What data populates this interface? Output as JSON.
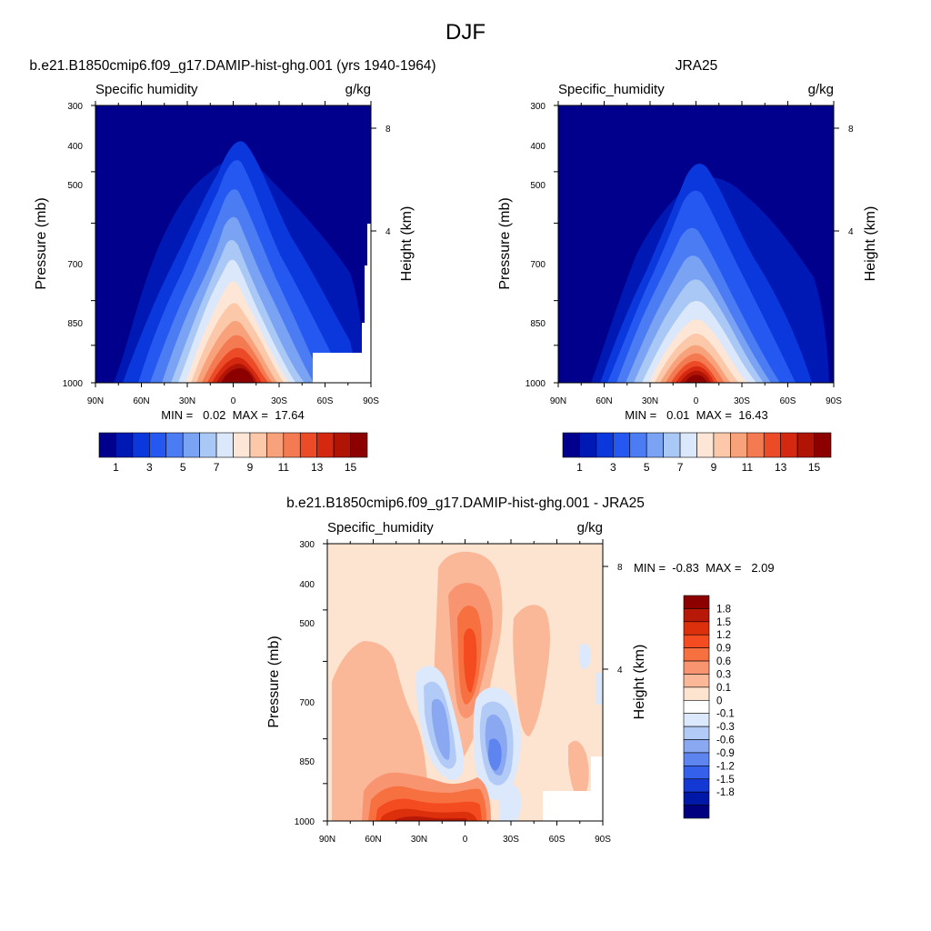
{
  "figure": {
    "title": "DJF"
  },
  "chart_data": [
    {
      "type": "heatmap",
      "title": "b.e21.B1850cmip6.f09_g17.DAMIP-hist-ghg.001 (yrs 1940-1964)",
      "left_label": "Specific humidity",
      "right_label": "g/kg",
      "ylabel": "Pressure (mb)",
      "ylabel_right": "Height (km)",
      "x_ticks": [
        "90N",
        "60N",
        "30N",
        "0",
        "30S",
        "60S",
        "90S"
      ],
      "y_ticks": [
        "300",
        "400",
        "500",
        "700",
        "850",
        "1000"
      ],
      "y_ticks_right": [
        "8",
        "4"
      ],
      "ylim": [
        1000,
        300
      ],
      "stats": "MIN =   0.02  MAX =  17.64",
      "min": 0.02,
      "max": 17.64,
      "colorbar_orientation": "horizontal",
      "colorbar_labels": [
        "1",
        "3",
        "5",
        "7",
        "9",
        "11",
        "13",
        "15"
      ],
      "colorbar_colors": [
        "#00008c",
        "#0018b4",
        "#0a38dc",
        "#2458f0",
        "#4b7cf4",
        "#7aa3f4",
        "#aac8f6",
        "#dbe8fb",
        "#fde6d6",
        "#fcc8aa",
        "#f8a27c",
        "#f47a52",
        "#ec4b28",
        "#d42810",
        "#b01404",
        "#8c0000"
      ]
    },
    {
      "type": "heatmap",
      "title": "JRA25",
      "left_label": "Specific_humidity",
      "right_label": "g/kg",
      "ylabel": "Pressure (mb)",
      "ylabel_right": "Height (km)",
      "x_ticks": [
        "90N",
        "60N",
        "30N",
        "0",
        "30S",
        "60S",
        "90S"
      ],
      "y_ticks": [
        "300",
        "400",
        "500",
        "700",
        "850",
        "1000"
      ],
      "y_ticks_right": [
        "8",
        "4"
      ],
      "ylim": [
        1000,
        300
      ],
      "stats": "MIN =   0.01  MAX =  16.43",
      "min": 0.01,
      "max": 16.43,
      "colorbar_orientation": "horizontal",
      "colorbar_labels": [
        "1",
        "3",
        "5",
        "7",
        "9",
        "11",
        "13",
        "15"
      ],
      "colorbar_colors": [
        "#00008c",
        "#0018b4",
        "#0a38dc",
        "#2458f0",
        "#4b7cf4",
        "#7aa3f4",
        "#aac8f6",
        "#dbe8fb",
        "#fde6d6",
        "#fcc8aa",
        "#f8a27c",
        "#f47a52",
        "#ec4b28",
        "#d42810",
        "#b01404",
        "#8c0000"
      ]
    },
    {
      "type": "heatmap",
      "title": "b.e21.B1850cmip6.f09_g17.DAMIP-hist-ghg.001 - JRA25",
      "left_label": "Specific_humidity",
      "right_label": "g/kg",
      "ylabel": "Pressure (mb)",
      "ylabel_right": "Height (km)",
      "x_ticks": [
        "90N",
        "60N",
        "30N",
        "0",
        "30S",
        "60S",
        "90S"
      ],
      "y_ticks": [
        "300",
        "400",
        "500",
        "700",
        "850",
        "1000"
      ],
      "y_ticks_right": [
        "8",
        "4"
      ],
      "ylim": [
        1000,
        300
      ],
      "stats": "MIN =  -0.83  MAX =   2.09",
      "min": -0.83,
      "max": 2.09,
      "colorbar_orientation": "vertical",
      "colorbar_labels": [
        "1.8",
        "1.5",
        "1.2",
        "0.9",
        "0.6",
        "0.3",
        "0.1",
        "0",
        "-0.1",
        "-0.3",
        "-0.6",
        "-0.9",
        "-1.2",
        "-1.5",
        "-1.8"
      ],
      "colorbar_colors": [
        "#8c0000",
        "#b81808",
        "#dc300c",
        "#f44c20",
        "#f67040",
        "#f89470",
        "#fab898",
        "#fde4d0",
        "#ffffff",
        "#dce8fb",
        "#b2caf6",
        "#8aa8f2",
        "#5e84f0",
        "#3460ec",
        "#1438d4",
        "#0018a8",
        "#000080"
      ]
    }
  ]
}
